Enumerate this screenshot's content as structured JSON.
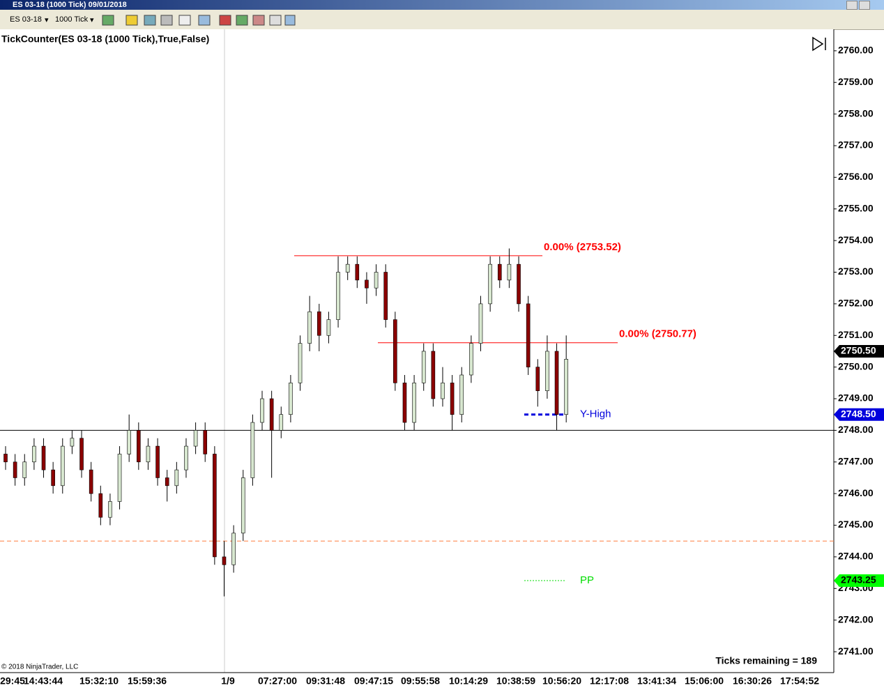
{
  "window": {
    "title": "ES 03-18 (1000 Tick)  09/01/2018"
  },
  "toolbar": {
    "instrument": "ES 03-18",
    "interval": "1000 Tick"
  },
  "chart_data": {
    "type": "candlestick",
    "title": "TickCounter(ES 03-18 (1000 Tick),True,False)",
    "up_color": "#d8e8d0",
    "down_color": "#8b0000",
    "open": [
      2747.25,
      2747.0,
      2746.5,
      2747.0,
      2747.5,
      2746.75,
      2746.25,
      2747.5,
      2747.75,
      2746.75,
      2746.0,
      2745.25,
      2745.75,
      2747.25,
      2748.0,
      2747.0,
      2747.5,
      2746.5,
      2746.25,
      2746.75,
      2747.5,
      2748.0,
      2747.25,
      2744.0,
      2743.75,
      2744.75,
      2746.5,
      2748.25,
      2749.0,
      2748.0,
      2748.5,
      2749.5,
      2750.75,
      2751.75,
      2751.0,
      2751.5,
      2753.0,
      2753.25,
      2752.75,
      2752.5,
      2753.0,
      2751.5,
      2749.5,
      2748.25,
      2749.5,
      2750.5,
      2749.0,
      2749.5,
      2748.5,
      2749.75,
      2750.75,
      2752.0,
      2753.25,
      2752.75,
      2753.25,
      2752.0,
      2750.0,
      2749.25,
      2750.5,
      2748.5
    ],
    "high": [
      2747.5,
      2747.25,
      2747.25,
      2747.75,
      2747.75,
      2747.0,
      2747.75,
      2748.0,
      2748.0,
      2747.0,
      2746.25,
      2746.0,
      2747.5,
      2748.5,
      2748.25,
      2747.75,
      2747.75,
      2746.75,
      2747.0,
      2747.75,
      2748.25,
      2748.25,
      2747.5,
      2744.5,
      2745.0,
      2746.75,
      2748.5,
      2749.25,
      2749.25,
      2748.75,
      2749.75,
      2751.0,
      2752.25,
      2752.0,
      2751.75,
      2753.5,
      2753.5,
      2753.5,
      2753.0,
      2753.25,
      2753.25,
      2751.75,
      2749.75,
      2749.75,
      2750.75,
      2750.75,
      2750.0,
      2749.75,
      2750.0,
      2751.0,
      2752.25,
      2753.5,
      2753.5,
      2753.75,
      2753.5,
      2752.25,
      2750.25,
      2751.0,
      2750.75,
      2751.0
    ],
    "low": [
      2746.75,
      2746.25,
      2746.25,
      2746.75,
      2746.5,
      2746.0,
      2746.0,
      2747.25,
      2746.5,
      2745.75,
      2745.0,
      2745.0,
      2745.5,
      2747.0,
      2746.75,
      2746.75,
      2746.25,
      2745.75,
      2746.0,
      2746.5,
      2747.25,
      2747.0,
      2743.75,
      2742.75,
      2743.5,
      2744.5,
      2746.25,
      2748.0,
      2746.5,
      2747.75,
      2748.25,
      2749.25,
      2750.5,
      2750.5,
      2750.75,
      2751.25,
      2752.75,
      2752.5,
      2752.0,
      2752.25,
      2751.25,
      2749.25,
      2748.0,
      2748.0,
      2749.25,
      2748.75,
      2748.75,
      2748.0,
      2748.25,
      2749.5,
      2750.5,
      2751.75,
      2752.5,
      2752.5,
      2751.75,
      2749.75,
      2748.75,
      2749.0,
      2748.0,
      2748.25
    ],
    "close": [
      2747.0,
      2746.5,
      2747.0,
      2747.5,
      2746.75,
      2746.25,
      2747.5,
      2747.75,
      2746.75,
      2746.0,
      2745.25,
      2745.75,
      2747.25,
      2748.0,
      2747.0,
      2747.5,
      2746.5,
      2746.25,
      2746.75,
      2747.5,
      2748.0,
      2747.25,
      2744.0,
      2743.75,
      2744.75,
      2746.5,
      2748.25,
      2749.0,
      2748.0,
      2748.5,
      2749.5,
      2750.75,
      2751.75,
      2751.0,
      2751.5,
      2753.0,
      2753.25,
      2752.75,
      2752.5,
      2753.0,
      2751.5,
      2749.5,
      2748.25,
      2749.5,
      2750.5,
      2749.0,
      2749.5,
      2748.5,
      2749.75,
      2750.75,
      2752.0,
      2753.25,
      2752.75,
      2753.25,
      2752.0,
      2750.0,
      2749.25,
      2750.5,
      2748.5,
      2750.25
    ],
    "xtick_labels": [
      "29:45",
      "14:43:44",
      "15:32:10",
      "15:59:36",
      "1/9",
      "07:27:00",
      "09:31:48",
      "09:47:15",
      "09:55:58",
      "10:14:29",
      "10:38:59",
      "10:56:20",
      "12:17:08",
      "13:41:34",
      "15:06:00",
      "16:30:26",
      "17:54:52"
    ],
    "ylim": [
      2740.34,
      2760.68
    ],
    "yticks": [
      {
        "value": 2741,
        "label": "2741.00"
      },
      {
        "value": 2742,
        "label": "2742.00"
      },
      {
        "value": 2743,
        "label": "2743.00"
      },
      {
        "value": 2744,
        "label": "2744.00"
      },
      {
        "value": 2745,
        "label": "2745.00"
      },
      {
        "value": 2746,
        "label": "2746.00"
      },
      {
        "value": 2747,
        "label": "2747.00"
      },
      {
        "value": 2748,
        "label": "2748.00"
      },
      {
        "value": 2749,
        "label": "2749.00"
      },
      {
        "value": 2750,
        "label": "2750.00"
      },
      {
        "value": 2751,
        "label": "2751.00"
      },
      {
        "value": 2752,
        "label": "2752.00"
      },
      {
        "value": 2753,
        "label": "2753.00"
      },
      {
        "value": 2754,
        "label": "2754.00"
      },
      {
        "value": 2755,
        "label": "2755.00"
      },
      {
        "value": 2756,
        "label": "2756.00"
      },
      {
        "value": 2757,
        "label": "2757.00"
      },
      {
        "value": 2758,
        "label": "2758.00"
      },
      {
        "value": 2759,
        "label": "2759.00"
      },
      {
        "value": 2760,
        "label": "2760.00"
      }
    ],
    "grid": false,
    "levels": [
      {
        "value": 2753.52,
        "label": "0.00% (2753.52)",
        "color": "#ff0000",
        "style": "solid"
      },
      {
        "value": 2750.77,
        "label": "0.00% (2750.77)",
        "color": "#ff0000",
        "style": "solid"
      },
      {
        "value": 2748.5,
        "label": "Y-High",
        "color": "#0000dd",
        "style": "dashed"
      },
      {
        "value": 2743.25,
        "label": "PP",
        "color": "#00dd00",
        "style": "dotted"
      },
      {
        "value": 2748,
        "color": "#000000",
        "style": "solid"
      },
      {
        "value": 2744.5,
        "color": "#ff7f3f",
        "style": "dashed"
      }
    ],
    "price_markers": [
      {
        "value": 2750.5,
        "label": "2750.50",
        "color": "#000000"
      },
      {
        "value": 2748.5,
        "label": "2748.50",
        "color": "#0000dd"
      },
      {
        "value": 2743.25,
        "label": "2743.25",
        "color": "#00ff00"
      }
    ],
    "ticks_remaining": "Ticks remaining = 189",
    "copyright": "© 2018 NinjaTrader, LLC"
  }
}
